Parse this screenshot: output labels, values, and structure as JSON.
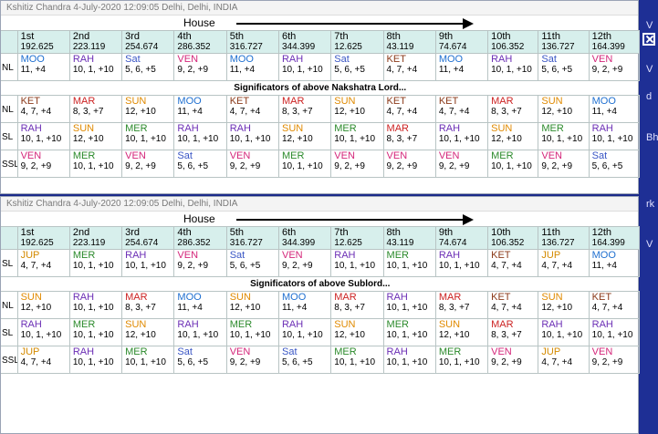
{
  "colors": {
    "MOO": "#1e6fd0",
    "RAH": "#6b2eb5",
    "Sat": "#3a56c5",
    "VEN": "#d4267a",
    "KET": "#8b3a1a",
    "MAR": "#cc2222",
    "SUN": "#e08a00",
    "MER": "#2b8a2b",
    "JUP": "#d48a00"
  },
  "houses": [
    {
      "n": "1st",
      "d": "192.625"
    },
    {
      "n": "2nd",
      "d": "223.119"
    },
    {
      "n": "3rd",
      "d": "254.674"
    },
    {
      "n": "4th",
      "d": "286.352"
    },
    {
      "n": "5th",
      "d": "316.727"
    },
    {
      "n": "6th",
      "d": "344.399"
    },
    {
      "n": "7th",
      "d": "12.625"
    },
    {
      "n": "8th",
      "d": "43.119"
    },
    {
      "n": "9th",
      "d": "74.674"
    },
    {
      "n": "10th",
      "d": "106.352"
    },
    {
      "n": "11th",
      "d": "136.727"
    },
    {
      "n": "12th",
      "d": "164.399"
    }
  ],
  "window1": {
    "title": "Kshitiz Chandra 4-July-2020 12:09:05 Delhi, Delhi, INDIA",
    "house_label": "House",
    "section_title": "Significators of above Nakshatra Lord...",
    "top_row": {
      "label": "NL",
      "cells": [
        [
          "MOO",
          "11, +4"
        ],
        [
          "RAH",
          "10, 1, +10"
        ],
        [
          "Sat",
          "5, 6, +5"
        ],
        [
          "VEN",
          "9, 2, +9"
        ],
        [
          "MOO",
          "11, +4"
        ],
        [
          "RAH",
          "10, 1, +10"
        ],
        [
          "Sat",
          "5, 6, +5"
        ],
        [
          "KET",
          "4, 7, +4"
        ],
        [
          "MOO",
          "11, +4"
        ],
        [
          "RAH",
          "10, 1, +10"
        ],
        [
          "Sat",
          "5, 6, +5"
        ],
        [
          "VEN",
          "9, 2, +9"
        ]
      ]
    },
    "sig_rows": [
      {
        "label": "NL",
        "cells": [
          [
            "KET",
            "4, 7, +4"
          ],
          [
            "MAR",
            "8, 3, +7"
          ],
          [
            "SUN",
            "12, +10"
          ],
          [
            "MOO",
            "11, +4"
          ],
          [
            "KET",
            "4, 7, +4"
          ],
          [
            "MAR",
            "8, 3, +7"
          ],
          [
            "SUN",
            "12, +10"
          ],
          [
            "KET",
            "4, 7, +4"
          ],
          [
            "KET",
            "4, 7, +4"
          ],
          [
            "MAR",
            "8, 3, +7"
          ],
          [
            "SUN",
            "12, +10"
          ],
          [
            "MOO",
            "11, +4"
          ]
        ]
      },
      {
        "label": "SL",
        "cells": [
          [
            "RAH",
            "10, 1, +10"
          ],
          [
            "SUN",
            "12, +10"
          ],
          [
            "MER",
            "10, 1, +10"
          ],
          [
            "RAH",
            "10, 1, +10"
          ],
          [
            "RAH",
            "10, 1, +10"
          ],
          [
            "SUN",
            "12, +10"
          ],
          [
            "MER",
            "10, 1, +10"
          ],
          [
            "MAR",
            "8, 3, +7"
          ],
          [
            "RAH",
            "10, 1, +10"
          ],
          [
            "SUN",
            "12, +10"
          ],
          [
            "MER",
            "10, 1, +10"
          ],
          [
            "RAH",
            "10, 1, +10"
          ]
        ]
      },
      {
        "label": "SSL",
        "cells": [
          [
            "VEN",
            "9, 2, +9"
          ],
          [
            "MER",
            "10, 1, +10"
          ],
          [
            "VEN",
            "9, 2, +9"
          ],
          [
            "Sat",
            "5, 6, +5"
          ],
          [
            "VEN",
            "9, 2, +9"
          ],
          [
            "MER",
            "10, 1, +10"
          ],
          [
            "VEN",
            "9, 2, +9"
          ],
          [
            "VEN",
            "9, 2, +9"
          ],
          [
            "VEN",
            "9, 2, +9"
          ],
          [
            "MER",
            "10, 1, +10"
          ],
          [
            "VEN",
            "9, 2, +9"
          ],
          [
            "Sat",
            "5, 6, +5"
          ]
        ]
      }
    ]
  },
  "window2": {
    "title": "Kshitiz Chandra 4-July-2020 12:09:05 Delhi, Delhi, INDIA",
    "house_label": "House",
    "section_title": "Significators of above Sublord...",
    "top_row": {
      "label": "SL",
      "cells": [
        [
          "JUP",
          "4, 7, +4"
        ],
        [
          "MER",
          "10, 1, +10"
        ],
        [
          "RAH",
          "10, 1, +10"
        ],
        [
          "VEN",
          "9, 2, +9"
        ],
        [
          "Sat",
          "5, 6, +5"
        ],
        [
          "VEN",
          "9, 2, +9"
        ],
        [
          "RAH",
          "10, 1, +10"
        ],
        [
          "MER",
          "10, 1, +10"
        ],
        [
          "RAH",
          "10, 1, +10"
        ],
        [
          "KET",
          "4, 7, +4"
        ],
        [
          "JUP",
          "4, 7, +4"
        ],
        [
          "MOO",
          "11, +4"
        ]
      ]
    },
    "sig_rows": [
      {
        "label": "NL",
        "cells": [
          [
            "SUN",
            "12, +10"
          ],
          [
            "RAH",
            "10, 1, +10"
          ],
          [
            "MAR",
            "8, 3, +7"
          ],
          [
            "MOO",
            "11, +4"
          ],
          [
            "SUN",
            "12, +10"
          ],
          [
            "MOO",
            "11, +4"
          ],
          [
            "MAR",
            "8, 3, +7"
          ],
          [
            "RAH",
            "10, 1, +10"
          ],
          [
            "MAR",
            "8, 3, +7"
          ],
          [
            "KET",
            "4, 7, +4"
          ],
          [
            "SUN",
            "12, +10"
          ],
          [
            "KET",
            "4, 7, +4"
          ]
        ]
      },
      {
        "label": "SL",
        "cells": [
          [
            "RAH",
            "10, 1, +10"
          ],
          [
            "MER",
            "10, 1, +10"
          ],
          [
            "SUN",
            "12, +10"
          ],
          [
            "RAH",
            "10, 1, +10"
          ],
          [
            "MER",
            "10, 1, +10"
          ],
          [
            "RAH",
            "10, 1, +10"
          ],
          [
            "SUN",
            "12, +10"
          ],
          [
            "MER",
            "10, 1, +10"
          ],
          [
            "SUN",
            "12, +10"
          ],
          [
            "MAR",
            "8, 3, +7"
          ],
          [
            "RAH",
            "10, 1, +10"
          ],
          [
            "RAH",
            "10, 1, +10"
          ]
        ]
      },
      {
        "label": "SSL",
        "cells": [
          [
            "JUP",
            "4, 7, +4"
          ],
          [
            "RAH",
            "10, 1, +10"
          ],
          [
            "MER",
            "10, 1, +10"
          ],
          [
            "Sat",
            "5, 6, +5"
          ],
          [
            "VEN",
            "9, 2, +9"
          ],
          [
            "Sat",
            "5, 6, +5"
          ],
          [
            "MER",
            "10, 1, +10"
          ],
          [
            "RAH",
            "10, 1, +10"
          ],
          [
            "MER",
            "10, 1, +10"
          ],
          [
            "VEN",
            "9, 2, +9"
          ],
          [
            "JUP",
            "4, 7, +4"
          ],
          [
            "VEN",
            "9, 2, +9"
          ]
        ]
      }
    ]
  },
  "right_strip": {
    "texts": [
      "V",
      "V",
      "d",
      "Bh",
      "rk",
      "V"
    ]
  }
}
